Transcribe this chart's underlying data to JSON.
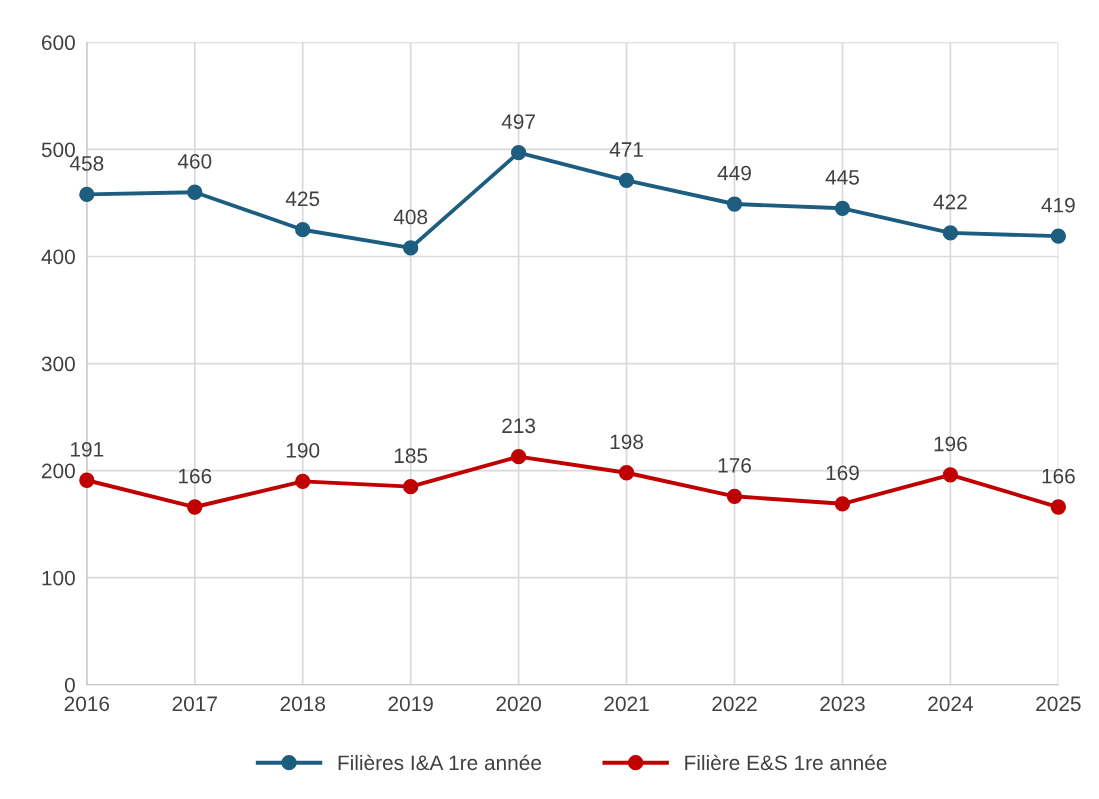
{
  "chart_data": {
    "type": "line",
    "categories": [
      "2016",
      "2017",
      "2018",
      "2019",
      "2020",
      "2021",
      "2022",
      "2023",
      "2024",
      "2025"
    ],
    "series": [
      {
        "name": "Filières I&A 1re année",
        "color": "#1d5e80",
        "values": [
          458,
          460,
          425,
          408,
          497,
          471,
          449,
          445,
          422,
          419
        ]
      },
      {
        "name": "Filière E&S 1re année",
        "color": "#c00000",
        "values": [
          191,
          166,
          190,
          185,
          213,
          198,
          176,
          169,
          196,
          166
        ]
      }
    ],
    "ylim": [
      0,
      600
    ],
    "yticks": [
      0,
      100,
      200,
      300,
      400,
      500,
      600
    ],
    "grid": true,
    "legend": "bottom",
    "marker": "circle",
    "line_style": "solid",
    "data_labels": true
  }
}
